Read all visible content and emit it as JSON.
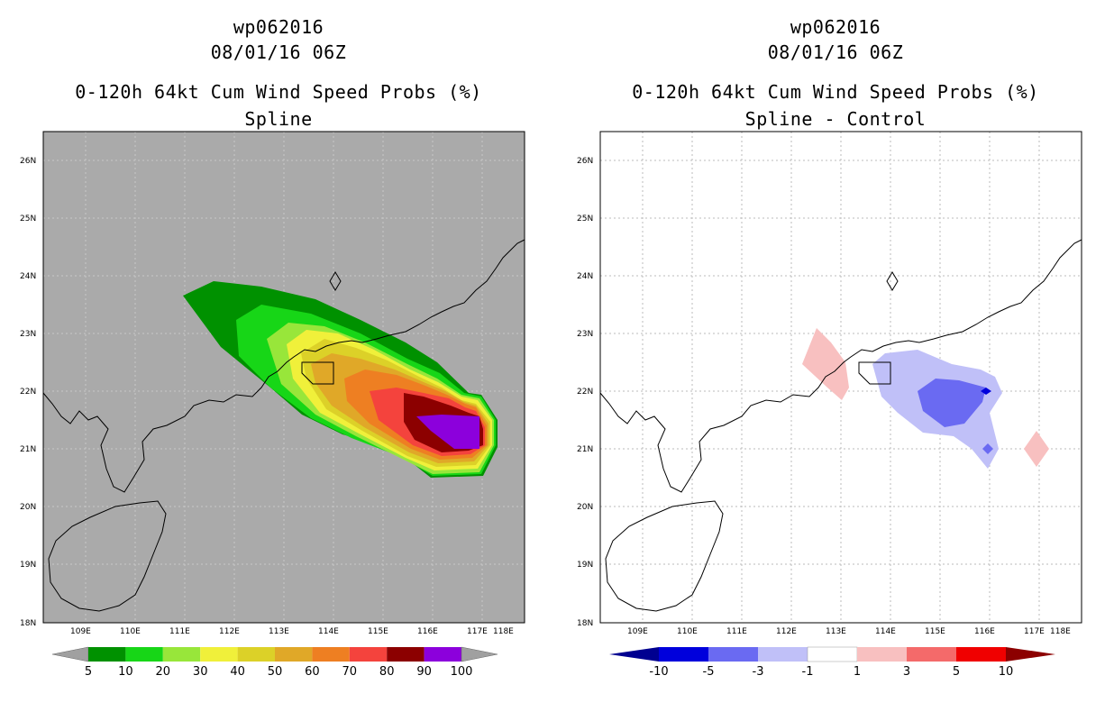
{
  "left_panel": {
    "storm_id": "wp062016",
    "datetime": "08/01/16 06Z",
    "product": "0-120h 64kt Cum Wind Speed Probs (%)",
    "subtitle": "Spline",
    "background_color": "#aaaaaa",
    "colorbar": {
      "labels": [
        "5",
        "10",
        "20",
        "30",
        "40",
        "50",
        "60",
        "70",
        "80",
        "90",
        "100"
      ],
      "colors": [
        "#009100",
        "#17d617",
        "#98e63a",
        "#f0f03a",
        "#dcd128",
        "#e0a828",
        "#ee7f22",
        "#f4433d",
        "#8c0000",
        "#8c00dc"
      ],
      "end_color": "#a0a0a0"
    }
  },
  "right_panel": {
    "storm_id": "wp062016",
    "datetime": "08/01/16 06Z",
    "product": "0-120h 64kt Cum Wind Speed Probs (%)",
    "subtitle": "Spline - Control",
    "background_color": "#ffffff",
    "colorbar": {
      "labels": [
        "-10",
        "-5",
        "-3",
        "-1",
        "1",
        "3",
        "5",
        "10"
      ],
      "colors": [
        "#0000dc",
        "#6a6af2",
        "#c0c0f8",
        "#ffffff",
        "#f8c0c0",
        "#f46a6a",
        "#f00000"
      ],
      "left_end_color": "#000090",
      "right_end_color": "#8c0000"
    }
  },
  "axes": {
    "lon_labels": [
      "109E",
      "110E",
      "111E",
      "112E",
      "113E",
      "114E",
      "115E",
      "116E",
      "117E",
      "118E"
    ],
    "lat_labels": [
      "26N",
      "25N",
      "24N",
      "23N",
      "22N",
      "21N",
      "20N",
      "19N",
      "18N"
    ]
  }
}
